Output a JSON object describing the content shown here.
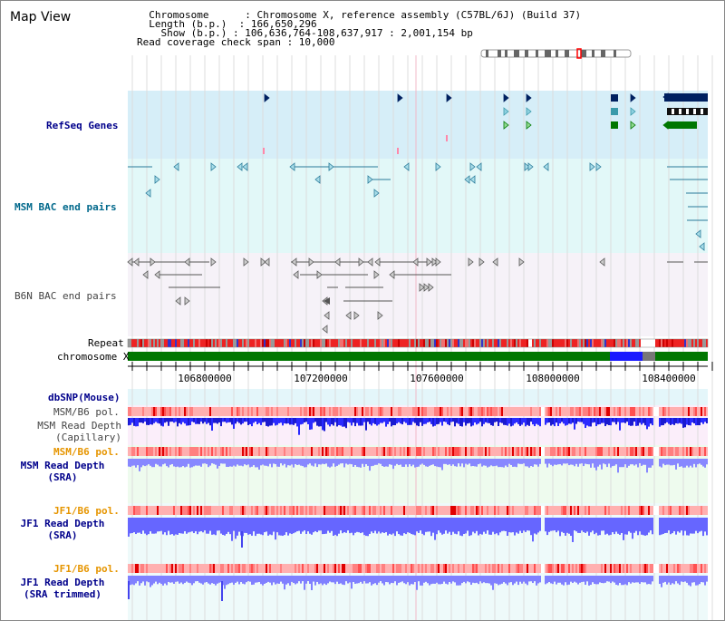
{
  "header": {
    "title": "Map View",
    "info_lines": [
      "  Chromosome      : Chromosome X, reference assembly (C57BL/6J) (Build 37)",
      "  Length (b.p.)  : 166,650,296",
      "    Show (b.p.) : 106,636,764-108,637,917 : 2,001,154 bp",
      "Read coverage check span : 10,000"
    ]
  },
  "tracks": {
    "refseq": "RefSeq Genes",
    "msm_bac": "MSM BAC end pairs",
    "b6n_bac": "B6N BAC end pairs",
    "repeat": "Repeat",
    "chromosome": "chromosome X",
    "dbsnp": "dbSNP(Mouse)",
    "msm_b6_pol_1": "MSM/B6 pol.",
    "msm_read_depth_cap": "MSM Read Depth\n(Capillary)",
    "msm_b6_pol_2": "MSM/B6 pol.",
    "msm_read_depth_sra": "MSM Read Depth\n(SRA)",
    "jf1_b6_pol_1": "JF1/B6 pol.",
    "jf1_read_depth_sra": "JF1 Read Depth\n(SRA)",
    "jf1_b6_pol_2": "JF1/B6 pol.",
    "jf1_read_depth_trim": "JF1 Read Depth\n(SRA trimmed)"
  },
  "axis": {
    "ticks": [
      "106800000",
      "107200000",
      "107600000",
      "108000000",
      "108400000"
    ]
  },
  "colors": {
    "refseq_bg": "#d8f0f8",
    "msm_bg": "#e6fafa",
    "b6n_bg": "#f8f4fa",
    "depth_blue": "#6666ff",
    "depth_dark": "#1a1ae6",
    "pol_red": "#ff6666",
    "gene_navy": "#002060",
    "gene_teal": "#3a9aaa",
    "gene_green": "#007700"
  }
}
